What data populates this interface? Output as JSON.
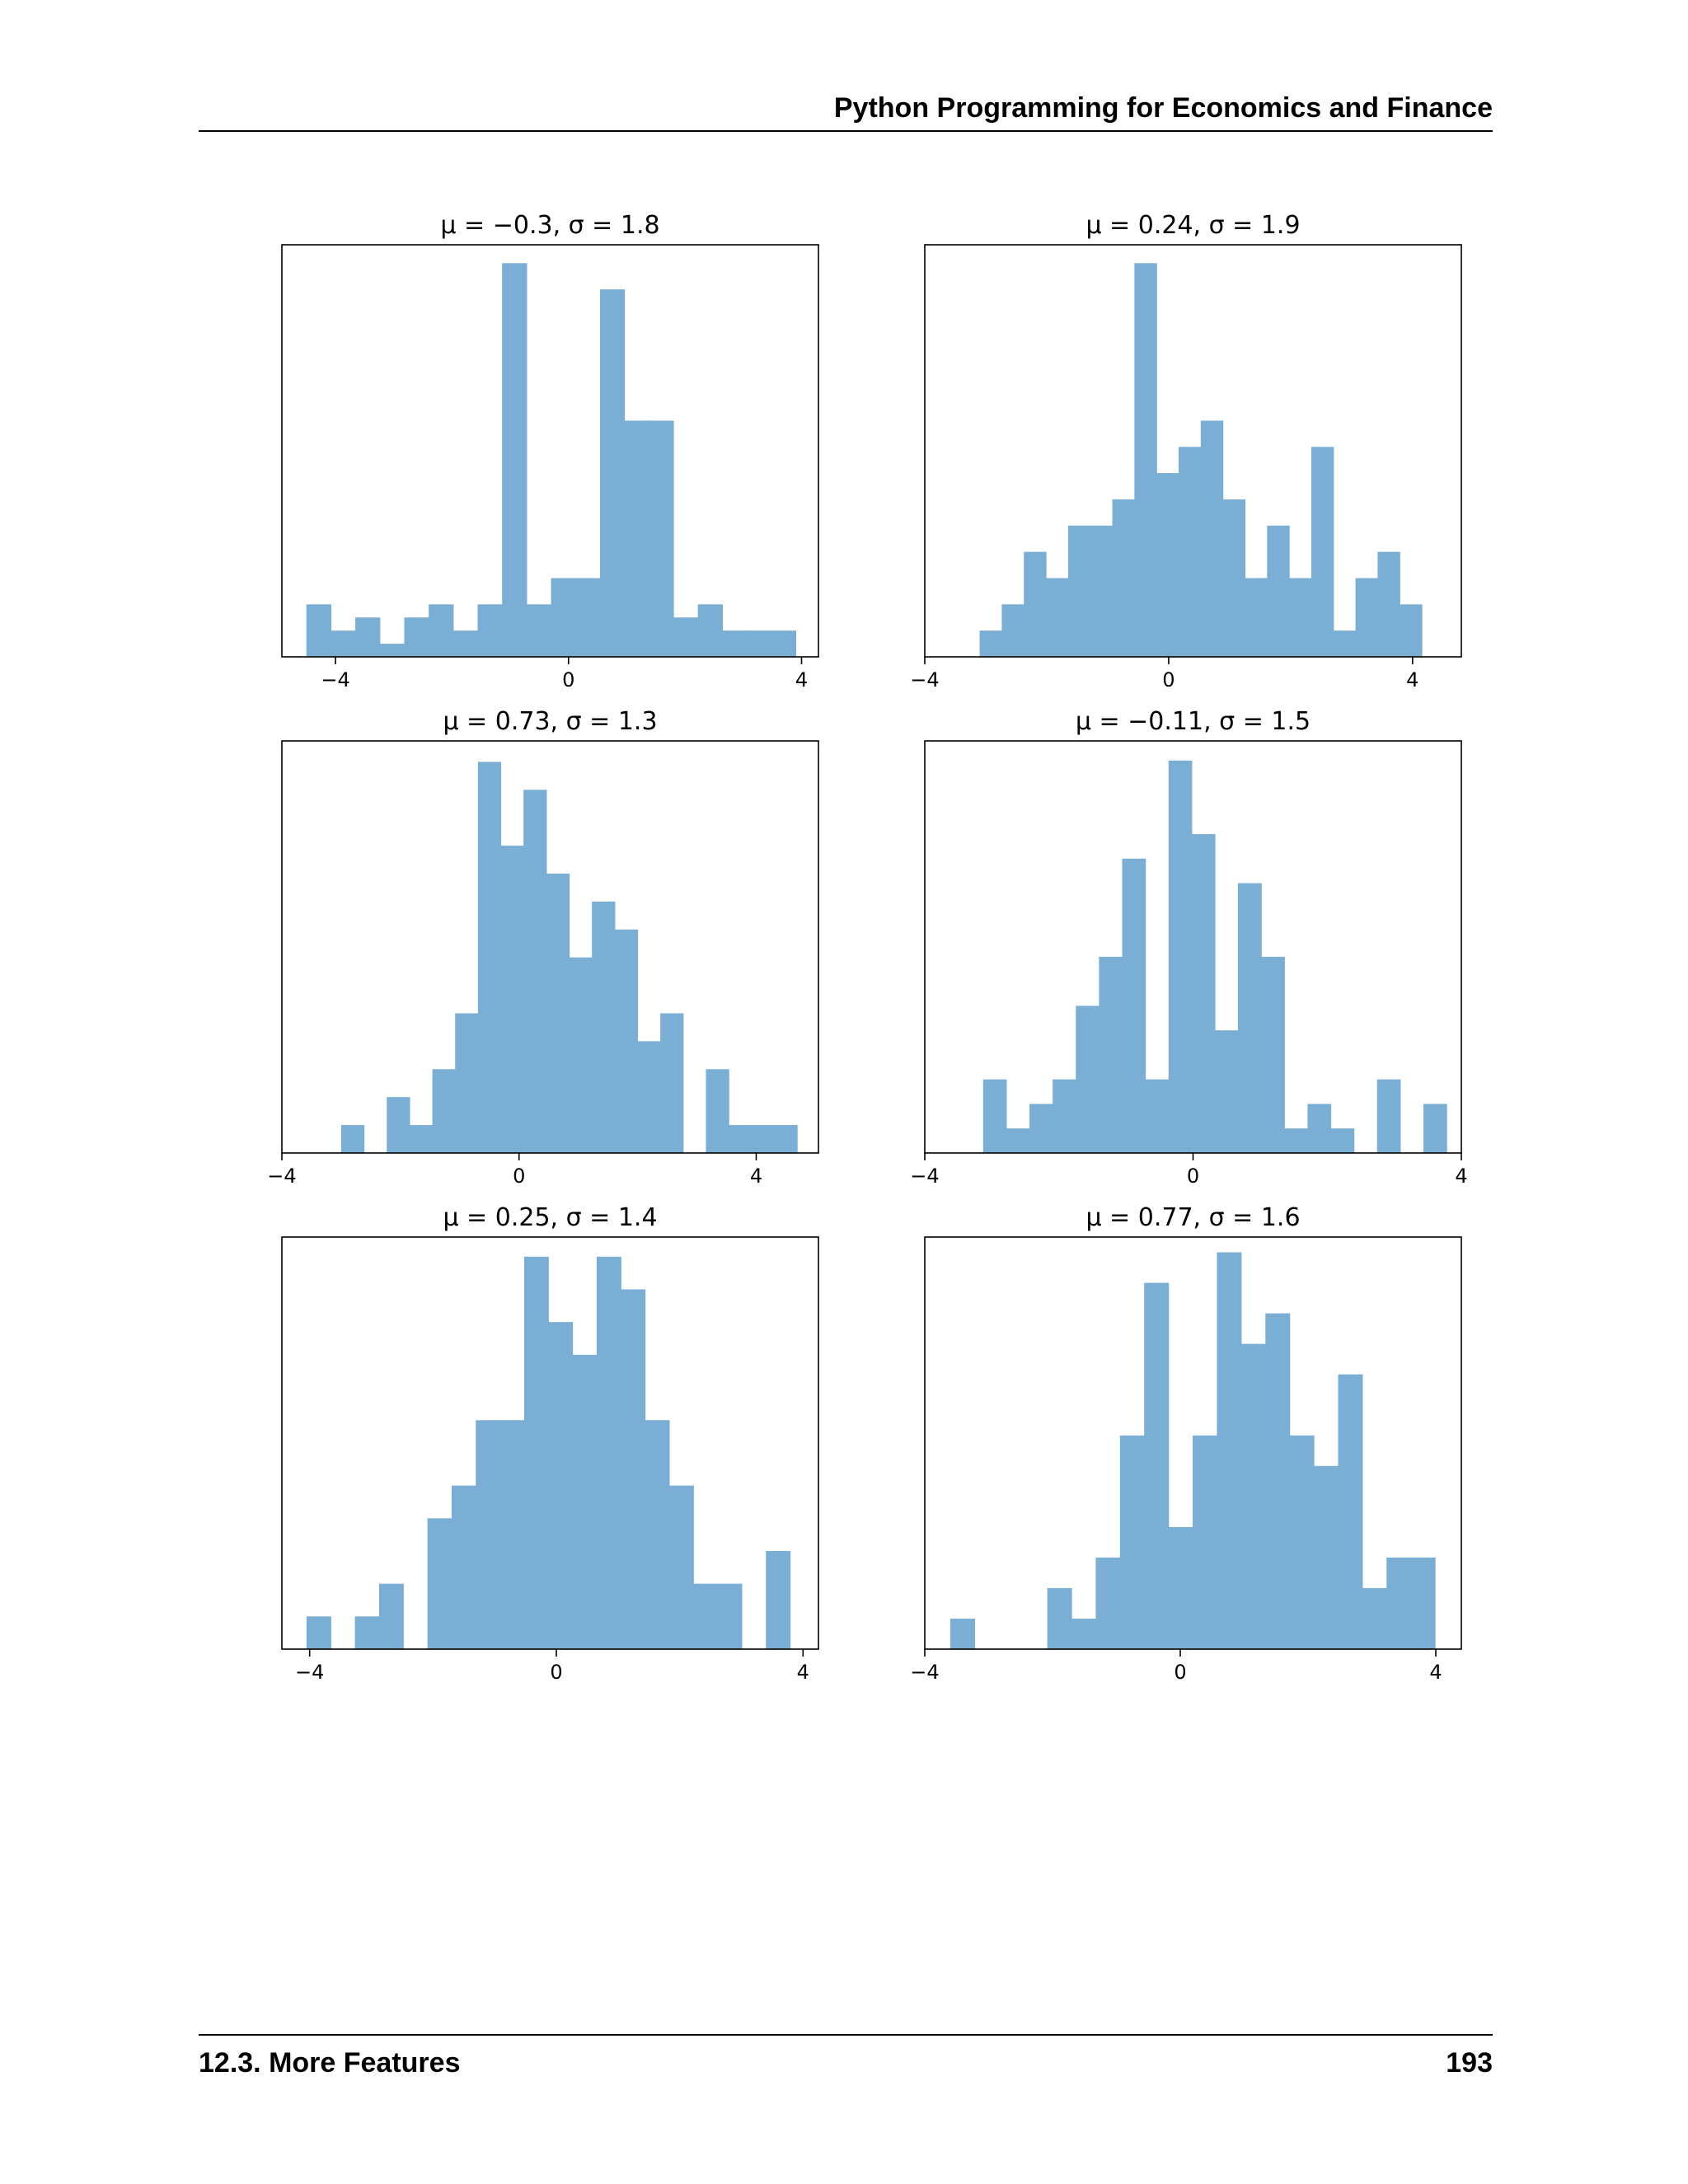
{
  "page": {
    "running_header": "Python Programming for Economics and Finance",
    "footer_section": "12.3.   More Features",
    "page_number": "193"
  },
  "chart_data": [
    {
      "type": "bar",
      "histogram": true,
      "title": "μ = −0.3,    σ = 1.8",
      "xlim": [
        -4.92,
        4.29
      ],
      "ylim": [
        0,
        15.7
      ],
      "xticks": [
        -4,
        0,
        4
      ],
      "xticklabels": [
        "−4",
        "0",
        "4"
      ],
      "bins_start": -4.5,
      "bin_width": 0.42,
      "values": [
        2,
        1,
        1.5,
        0.5,
        1.5,
        2,
        1,
        2,
        15,
        2,
        3,
        3,
        14,
        9,
        9,
        1.5,
        2,
        1,
        1,
        1
      ],
      "color": "#7aaed4",
      "show_y_axis": false
    },
    {
      "type": "bar",
      "histogram": true,
      "title": "μ = 0.24,    σ = 1.9",
      "xlim": [
        -4,
        4.8
      ],
      "ylim": [
        0,
        15.7
      ],
      "xticks": [
        -4,
        0,
        4
      ],
      "xticklabels": [
        "−4",
        "0",
        "4"
      ],
      "bins_start": -3.1,
      "bin_width": 0.3626,
      "values": [
        1,
        2,
        4,
        3,
        5,
        5,
        6,
        15,
        7,
        8,
        9,
        6,
        3,
        5,
        3,
        8,
        1,
        3,
        4,
        2
      ],
      "color": "#7aaed4",
      "show_y_axis": false
    },
    {
      "type": "bar",
      "histogram": true,
      "title": "μ = 0.73,    σ = 1.3",
      "xlim": [
        -4,
        5.05
      ],
      "ylim": [
        0,
        14.75
      ],
      "xticks": [
        -4,
        0,
        4
      ],
      "xticklabels": [
        "−4",
        "0",
        "4"
      ],
      "bins_start": -3,
      "bin_width": 0.3845,
      "values": [
        1,
        0,
        2,
        1,
        3,
        5,
        14,
        11,
        13,
        10,
        7,
        9,
        8,
        4,
        5,
        0,
        3,
        1,
        1,
        1
      ],
      "color": "#7aaed4",
      "show_y_axis": false
    },
    {
      "type": "bar",
      "histogram": true,
      "title": "μ = −0.11,    σ = 1.5",
      "xlim": [
        -4,
        4
      ],
      "ylim": [
        0,
        16.8
      ],
      "xticks": [
        -4,
        0,
        4
      ],
      "xticklabels": [
        "−4",
        "0",
        "4"
      ],
      "bins_start": -3.13,
      "bin_width": 0.3455,
      "values": [
        3,
        1,
        2,
        3,
        6,
        8,
        12,
        3,
        16,
        13,
        5,
        11,
        8,
        1,
        2,
        1,
        0,
        3,
        0,
        2
      ],
      "color": "#7aaed4",
      "show_y_axis": false
    },
    {
      "type": "bar",
      "histogram": true,
      "title": "μ = 0.25,    σ = 1.4",
      "xlim": [
        -4.45,
        4.25
      ],
      "ylim": [
        0,
        12.6
      ],
      "xticks": [
        -4,
        0,
        4
      ],
      "xticklabels": [
        "−4",
        "0",
        "4"
      ],
      "bins_start": -4.05,
      "bin_width": 0.392,
      "values": [
        1,
        0,
        1,
        2,
        0,
        4,
        5,
        7,
        7,
        12,
        10,
        9,
        12,
        11,
        7,
        5,
        2,
        2,
        0,
        3
      ],
      "color": "#7aaed4",
      "show_y_axis": false
    },
    {
      "type": "bar",
      "histogram": true,
      "title": "μ = 0.77,    σ = 1.6",
      "xlim": [
        -4,
        4.4
      ],
      "ylim": [
        0,
        13.5
      ],
      "xticks": [
        -4,
        0,
        4
      ],
      "xticklabels": [
        "−4",
        "0",
        "4"
      ],
      "bins_start": -3.6,
      "bin_width": 0.3794,
      "values": [
        1,
        0,
        0,
        0,
        2,
        1,
        3,
        7,
        12,
        4,
        7,
        13,
        10,
        11,
        7,
        6,
        9,
        2,
        3,
        3
      ],
      "color": "#7aaed4",
      "show_y_axis": false
    }
  ]
}
